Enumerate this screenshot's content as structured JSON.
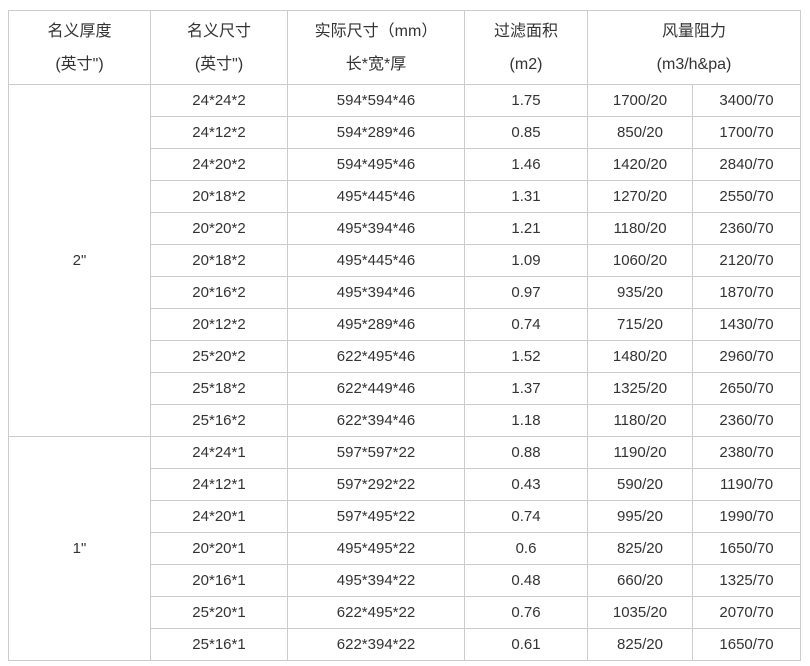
{
  "table": {
    "columns": [
      {
        "line1": "名义厚度",
        "line2": "(英寸\")"
      },
      {
        "line1": "名义尺寸",
        "line2": "(英寸\")"
      },
      {
        "line1": "实际尺寸（mm）",
        "line2": "长*宽*厚"
      },
      {
        "line1": "过滤面积",
        "line2": "(m2)"
      },
      {
        "line1": "风量阻力",
        "line2": "(m3/h&pa)"
      }
    ],
    "sections": [
      {
        "thickness": "2\"",
        "rows": [
          [
            "24*24*2",
            "594*594*46",
            "1.75",
            "1700/20",
            "3400/70"
          ],
          [
            "24*12*2",
            "594*289*46",
            "0.85",
            "850/20",
            "1700/70"
          ],
          [
            "24*20*2",
            "594*495*46",
            "1.46",
            "1420/20",
            "2840/70"
          ],
          [
            "20*18*2",
            "495*445*46",
            "1.31",
            "1270/20",
            "2550/70"
          ],
          [
            "20*20*2",
            "495*394*46",
            "1.21",
            "1180/20",
            "2360/70"
          ],
          [
            "20*18*2",
            "495*445*46",
            "1.09",
            "1060/20",
            "2120/70"
          ],
          [
            "20*16*2",
            "495*394*46",
            "0.97",
            "935/20",
            "1870/70"
          ],
          [
            "20*12*2",
            "495*289*46",
            "0.74",
            "715/20",
            "1430/70"
          ],
          [
            "25*20*2",
            "622*495*46",
            "1.52",
            "1480/20",
            "2960/70"
          ],
          [
            "25*18*2",
            "622*449*46",
            "1.37",
            "1325/20",
            "2650/70"
          ],
          [
            "25*16*2",
            "622*394*46",
            "1.18",
            "1180/20",
            "2360/70"
          ]
        ]
      },
      {
        "thickness": "1\"",
        "rows": [
          [
            "24*24*1",
            "597*597*22",
            "0.88",
            "1190/20",
            "2380/70"
          ],
          [
            "24*12*1",
            "597*292*22",
            "0.43",
            "590/20",
            "1190/70"
          ],
          [
            "24*20*1",
            "597*495*22",
            "0.74",
            "995/20",
            "1990/70"
          ],
          [
            "20*20*1",
            "495*495*22",
            "0.6",
            "825/20",
            "1650/70"
          ],
          [
            "20*16*1",
            "495*394*22",
            "0.48",
            "660/20",
            "1325/70"
          ],
          [
            "25*20*1",
            "622*495*22",
            "0.76",
            "1035/20",
            "2070/70"
          ],
          [
            "25*16*1",
            "622*394*22",
            "0.61",
            "825/20",
            "1650/70"
          ]
        ]
      }
    ]
  },
  "colors": {
    "border": "#cccccc",
    "text": "#333333",
    "background": "#ffffff"
  }
}
